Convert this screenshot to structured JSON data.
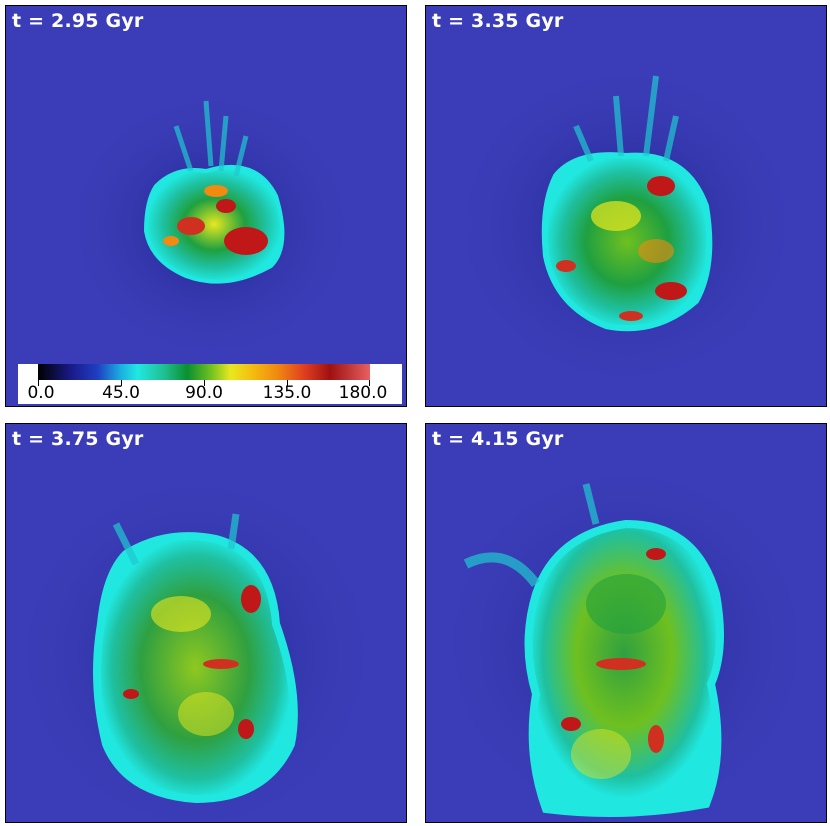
{
  "panels": [
    {
      "time_label": "t = 2.95 Gyr"
    },
    {
      "time_label": "t = 3.35 Gyr"
    },
    {
      "time_label": "t = 3.75 Gyr"
    },
    {
      "time_label": "t = 4.15 Gyr"
    }
  ],
  "colorbar": {
    "tick_labels": [
      "0.0",
      "45.0",
      "90.0",
      "135.0",
      "180.0"
    ],
    "range": [
      0,
      180
    ]
  },
  "colors": {
    "background_blue": "#3b3db8",
    "low": "#1a1a8a",
    "cyan": "#20e8e0",
    "green": "#0a8f30",
    "yellow": "#e8e820",
    "red": "#c01818"
  }
}
